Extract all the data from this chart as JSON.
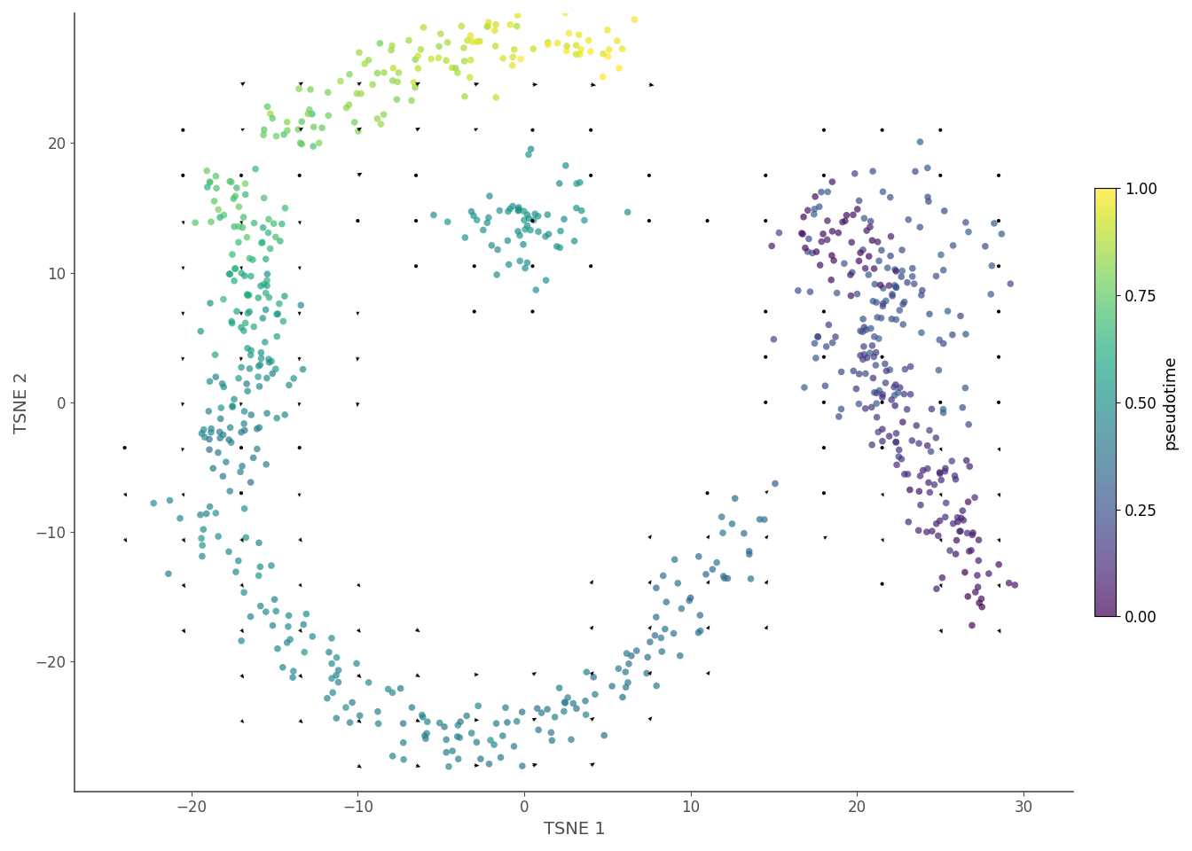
{
  "title": "",
  "xlabel": "TSNE 1",
  "ylabel": "TSNE 2",
  "xlim": [
    -27,
    33
  ],
  "ylim": [
    -30,
    30
  ],
  "xticks": [
    -20,
    -10,
    0,
    10,
    20,
    30
  ],
  "yticks": [
    -20,
    -10,
    0,
    10,
    20
  ],
  "colorbar_label": "pseudotime",
  "colorbar_ticks": [
    0.0,
    0.25,
    0.5,
    0.75,
    1.0
  ],
  "colorbar_ticklabels": [
    "0.00",
    "0.25",
    "0.50",
    "0.75",
    "1.00"
  ],
  "background_color": "#ffffff",
  "point_alpha": 0.7,
  "point_size": 30,
  "arrow_color": "black",
  "cmap": "viridis_yellow",
  "seed": 42,
  "label_fontsize": 14,
  "tick_fontsize": 12,
  "colorbar_fontsize": 13
}
